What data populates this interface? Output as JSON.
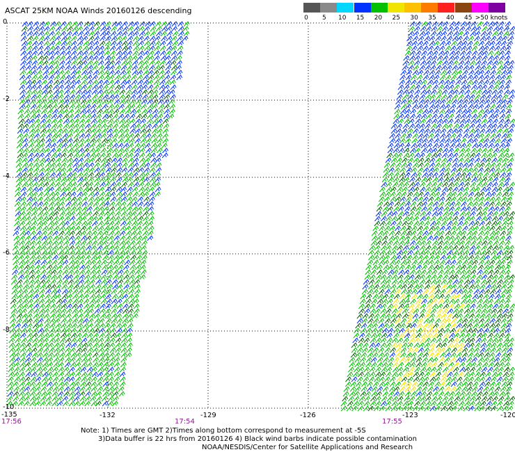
{
  "title": "ASCAT 25KM NOAA Winds 20160126 descending",
  "legend": {
    "colors": [
      "#555555",
      "#8a8a8a",
      "#00d7ff",
      "#0033ff",
      "#00c000",
      "#f0e400",
      "#ffc000",
      "#ff7b00",
      "#ff2020",
      "#8b4513",
      "#ff00ff",
      "#7f00a0"
    ],
    "labels": [
      "0",
      "5",
      "10",
      "15",
      "20",
      "25",
      "30",
      "35",
      "40",
      "45",
      ">50 knots"
    ]
  },
  "axes": {
    "y_labels": [
      "0",
      "-2",
      "-4",
      "-6",
      "-8",
      "-10"
    ],
    "x_labels": [
      "-135",
      "-132",
      "-129",
      "-126",
      "-123",
      "-120"
    ],
    "time_labels": [
      "17:56",
      "17:54",
      "17:55"
    ]
  },
  "notes": [
    "Note: 1) Times are GMT 2)Times along bottom correspond to measurement at -5S",
    "3)Data buffer is 22 hrs from 20160126 4) Black wind barbs indicate possible contamination",
    "NOAA/NESDIS/Center for Satellite Applications and Research"
  ]
}
